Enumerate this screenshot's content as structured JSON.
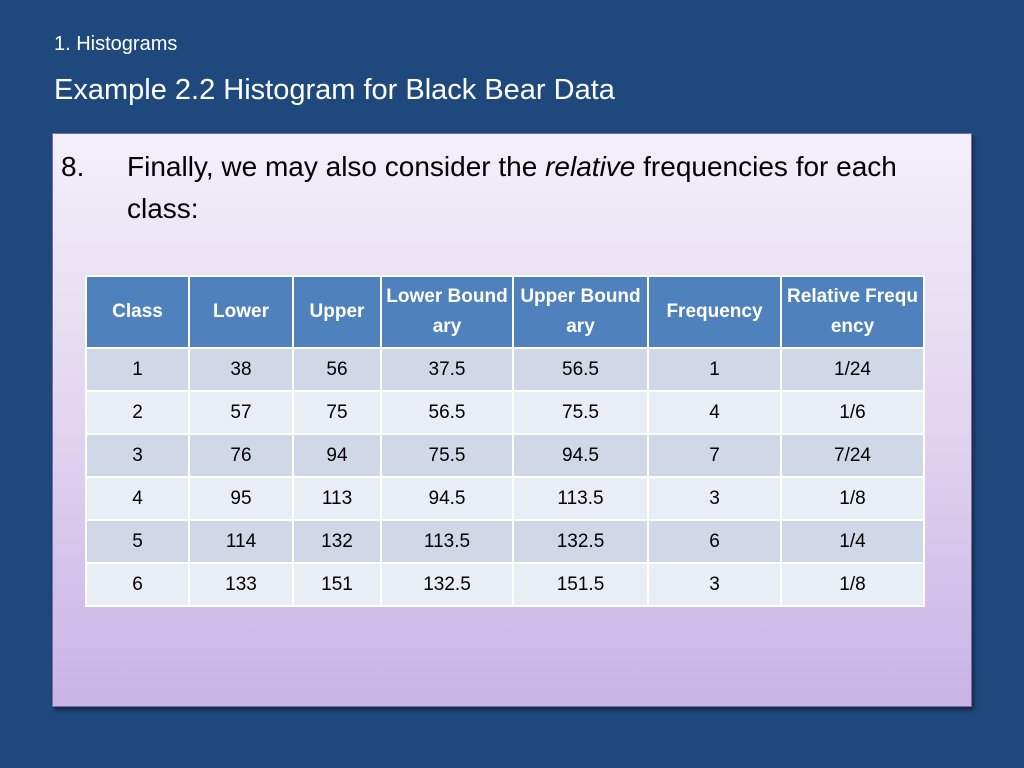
{
  "slide": {
    "section_label": "1. Histograms",
    "title": "Example 2.2 Histogram for Black Bear Data"
  },
  "bullet": {
    "number": "8.",
    "text_before": "Finally, we may also consider the ",
    "text_emphasis": "relative",
    "text_after": " frequencies for each class:"
  },
  "table": {
    "headers": [
      "Class",
      "Lower",
      "Upper",
      "Lower Boundary",
      "Upper Boundary",
      "Frequency",
      "Relative Frequency"
    ],
    "rows": [
      [
        "1",
        "38",
        "56",
        "37.5",
        "56.5",
        "1",
        "1/24"
      ],
      [
        "2",
        "57",
        "75",
        "56.5",
        "75.5",
        "4",
        "1/6"
      ],
      [
        "3",
        "76",
        "94",
        "75.5",
        "94.5",
        "7",
        "7/24"
      ],
      [
        "4",
        "95",
        "113",
        "94.5",
        "113.5",
        "3",
        "1/8"
      ],
      [
        "5",
        "114",
        "132",
        "113.5",
        "132.5",
        "6",
        "1/4"
      ],
      [
        "6",
        "133",
        "151",
        "132.5",
        "151.5",
        "3",
        "1/8"
      ]
    ]
  },
  "colors": {
    "background": "#1f497d",
    "table_header": "#4f81bd",
    "row_band_dark": "#d0d8e8",
    "row_band_light": "#e9edf4"
  }
}
